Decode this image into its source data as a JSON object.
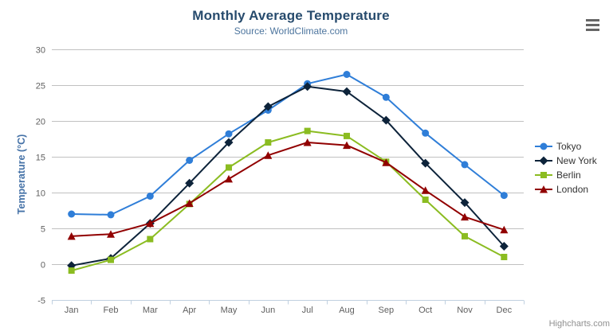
{
  "chart_data": {
    "type": "line",
    "title": "Monthly Average Temperature",
    "subtitle": "Source: WorldClimate.com",
    "categories": [
      "Jan",
      "Feb",
      "Mar",
      "Apr",
      "May",
      "Jun",
      "Jul",
      "Aug",
      "Sep",
      "Oct",
      "Nov",
      "Dec"
    ],
    "xlabel": "",
    "ylabel": "Temperature (°C)",
    "ylim": [
      -5,
      30
    ],
    "ytick_interval": 5,
    "grid": true,
    "legend_position": "right",
    "series": [
      {
        "name": "Tokyo",
        "color": "#2f7ed8",
        "marker": "circle",
        "values": [
          7.0,
          6.9,
          9.5,
          14.5,
          18.2,
          21.5,
          25.2,
          26.5,
          23.3,
          18.3,
          13.9,
          9.6
        ]
      },
      {
        "name": "New York",
        "color": "#0d233a",
        "marker": "diamond",
        "values": [
          -0.2,
          0.8,
          5.7,
          11.3,
          17.0,
          22.0,
          24.8,
          24.1,
          20.1,
          14.1,
          8.6,
          2.5
        ]
      },
      {
        "name": "Berlin",
        "color": "#8bbc21",
        "marker": "square",
        "values": [
          -0.9,
          0.6,
          3.5,
          8.4,
          13.5,
          17.0,
          18.6,
          17.9,
          14.3,
          9.0,
          3.9,
          1.0
        ]
      },
      {
        "name": "London",
        "color": "#910000",
        "marker": "triangle",
        "values": [
          3.9,
          4.2,
          5.7,
          8.5,
          11.9,
          15.2,
          17.0,
          16.6,
          14.2,
          10.3,
          6.6,
          4.8
        ]
      }
    ],
    "axis_colors": {
      "grid_line": "#c0c0c0",
      "axis_line": "#c0d0e0",
      "label": "#606060"
    }
  },
  "credits": {
    "label": "Highcharts.com"
  },
  "export_menu": {
    "icon": "hamburger-menu-icon"
  }
}
